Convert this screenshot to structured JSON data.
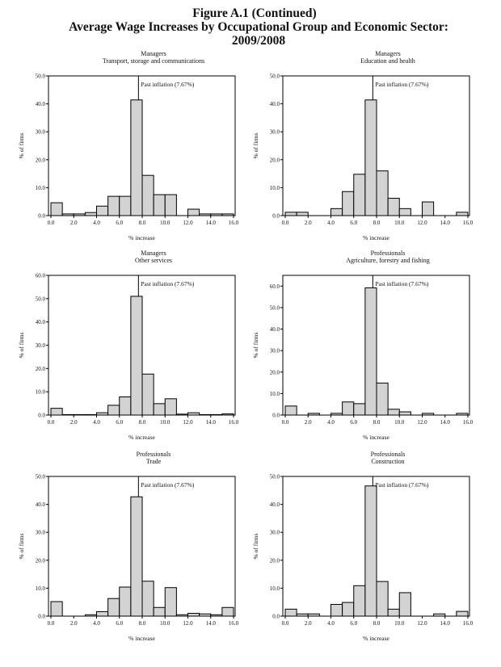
{
  "figure": {
    "title_line1": "Figure A.1 (Continued)",
    "title_line2": "Average Wage Increases by Occupational Group and Economic Sector:",
    "title_line3": "2009/2008"
  },
  "chart_data": [
    {
      "type": "bar",
      "subtype": "histogram",
      "group": "Managers",
      "sector": "Transport, storage and communications",
      "xlabel": "% increase",
      "ylabel": "% of firms",
      "xlim": [
        0,
        16
      ],
      "ylim": [
        0,
        50
      ],
      "xticks": [
        "0.0",
        "2.0",
        "4.0",
        "6.0",
        "8.0",
        "10.0",
        "12.0",
        "14.0",
        "16.0"
      ],
      "yticks": [
        "0.0",
        "10.0",
        "20.0",
        "30.0",
        "40.0",
        "50.0"
      ],
      "bin_width": 1,
      "bin_starts": [
        0,
        1,
        2,
        3,
        4,
        5,
        6,
        7,
        8,
        9,
        10,
        11,
        12,
        13,
        14,
        15
      ],
      "values": [
        4.6,
        0.6,
        0.6,
        1.1,
        3.4,
        6.9,
        6.9,
        41.4,
        14.4,
        7.5,
        7.5,
        0,
        2.3,
        0.6,
        0.6,
        0.6
      ],
      "reference_line": {
        "x": 7.67,
        "label": "Past inflation (7.67%)"
      }
    },
    {
      "type": "bar",
      "subtype": "histogram",
      "group": "Managers",
      "sector": "Education and health",
      "xlabel": "% increase",
      "ylabel": "% of firms",
      "xlim": [
        0,
        16
      ],
      "ylim": [
        0,
        50
      ],
      "xticks": [
        "0.0",
        "2.0",
        "4.0",
        "6.0",
        "8.0",
        "10.0",
        "12.0",
        "14.0",
        "16.0"
      ],
      "yticks": [
        "0.0",
        "10.0",
        "20.0",
        "30.0",
        "40.0",
        "50.0"
      ],
      "bin_width": 1,
      "bin_starts": [
        0,
        1,
        2,
        3,
        4,
        5,
        6,
        7,
        8,
        9,
        10,
        11,
        12,
        13,
        14,
        15
      ],
      "values": [
        1.2,
        1.2,
        0,
        0,
        2.5,
        8.6,
        14.8,
        41.4,
        16.0,
        6.2,
        2.5,
        0,
        4.9,
        0,
        0,
        1.2
      ],
      "reference_line": {
        "x": 7.67,
        "label": "Past inflation (7.67%)"
      }
    },
    {
      "type": "bar",
      "subtype": "histogram",
      "group": "Managers",
      "sector": "Other services",
      "xlabel": "% increase",
      "ylabel": "% of firms",
      "xlim": [
        0,
        16
      ],
      "ylim": [
        0,
        60
      ],
      "xticks": [
        "0.0",
        "2.0",
        "4.0",
        "6.0",
        "8.0",
        "10.0",
        "12.0",
        "14.0",
        "16.0"
      ],
      "yticks": [
        "0.0",
        "10.0",
        "20.0",
        "30.0",
        "40.0",
        "50.0",
        "60.0"
      ],
      "bin_width": 1,
      "bin_starts": [
        0,
        1,
        2,
        3,
        4,
        5,
        6,
        7,
        8,
        9,
        10,
        11,
        12,
        13,
        14,
        15
      ],
      "values": [
        2.9,
        0.2,
        0.2,
        0.2,
        1.0,
        4.2,
        7.8,
        51.0,
        17.6,
        4.9,
        7.0,
        0.4,
        1.0,
        0.2,
        0.2,
        0.5
      ],
      "reference_line": {
        "x": 7.67,
        "label": "Past inflation (7.67%)"
      }
    },
    {
      "type": "bar",
      "subtype": "histogram",
      "group": "Professionals",
      "sector": "Agriculture, forestry and fishing",
      "xlabel": "% increase",
      "ylabel": "% of firms",
      "xlim": [
        0,
        16
      ],
      "ylim": [
        0,
        65
      ],
      "xticks": [
        "0.0",
        "2.0",
        "4.0",
        "6.0",
        "8.0",
        "10.0",
        "12.0",
        "14.0",
        "16.0"
      ],
      "yticks": [
        "0.0",
        "10.0",
        "20.0",
        "30.0",
        "40.0",
        "50.0",
        "60.0"
      ],
      "bin_width": 1,
      "bin_starts": [
        0,
        1,
        2,
        3,
        4,
        5,
        6,
        7,
        8,
        9,
        10,
        11,
        12,
        13,
        14,
        15
      ],
      "values": [
        4.2,
        0,
        0.8,
        0,
        0.8,
        6.1,
        5.3,
        59.2,
        14.9,
        2.7,
        1.5,
        0,
        0.8,
        0,
        0,
        0.8
      ],
      "reference_line": {
        "x": 7.67,
        "label": "Past inflation (7.67%)"
      }
    },
    {
      "type": "bar",
      "subtype": "histogram",
      "group": "Professionals",
      "sector": "Trade",
      "xlabel": "% increase",
      "ylabel": "% of firms",
      "xlim": [
        0,
        16
      ],
      "ylim": [
        0,
        50
      ],
      "xticks": [
        "0.0",
        "2.0",
        "4.0",
        "6.0",
        "8.0",
        "10.0",
        "12.0",
        "14.0",
        "16.0"
      ],
      "yticks": [
        "0.0",
        "10.0",
        "20.0",
        "30.0",
        "40.0",
        "50.0"
      ],
      "bin_width": 1,
      "bin_starts": [
        0,
        1,
        2,
        3,
        4,
        5,
        6,
        7,
        8,
        9,
        10,
        11,
        12,
        13,
        14,
        15
      ],
      "values": [
        5.2,
        0,
        0,
        0.5,
        1.6,
        6.3,
        10.4,
        42.7,
        12.5,
        3.1,
        10.2,
        0.5,
        1.0,
        0.8,
        0.5,
        3.1
      ],
      "reference_line": {
        "x": 7.67,
        "label": "Past inflation (7.67%)"
      }
    },
    {
      "type": "bar",
      "subtype": "histogram",
      "group": "Professionals",
      "sector": "Construction",
      "xlabel": "% increase",
      "ylabel": "% of firms",
      "xlim": [
        0,
        16
      ],
      "ylim": [
        0,
        50
      ],
      "xticks": [
        "0.0",
        "2.0",
        "4.0",
        "6.0",
        "8.0",
        "10.0",
        "12.0",
        "14.0",
        "16.0"
      ],
      "yticks": [
        "0.0",
        "10.0",
        "20.0",
        "30.0",
        "40.0",
        "50.0"
      ],
      "bin_width": 1,
      "bin_starts": [
        0,
        1,
        2,
        3,
        4,
        5,
        6,
        7,
        8,
        9,
        10,
        11,
        12,
        13,
        14,
        15
      ],
      "values": [
        2.5,
        0.8,
        0.8,
        0,
        4.2,
        4.9,
        10.9,
        46.6,
        12.4,
        2.5,
        8.4,
        0,
        0,
        0.8,
        0,
        1.7
      ],
      "reference_line": {
        "x": 7.67,
        "label": "Past inflation (7.67%)"
      }
    }
  ],
  "colors": {
    "bar_fill": "#d3d3d3",
    "bar_stroke": "#000000",
    "axis": "#000000"
  }
}
